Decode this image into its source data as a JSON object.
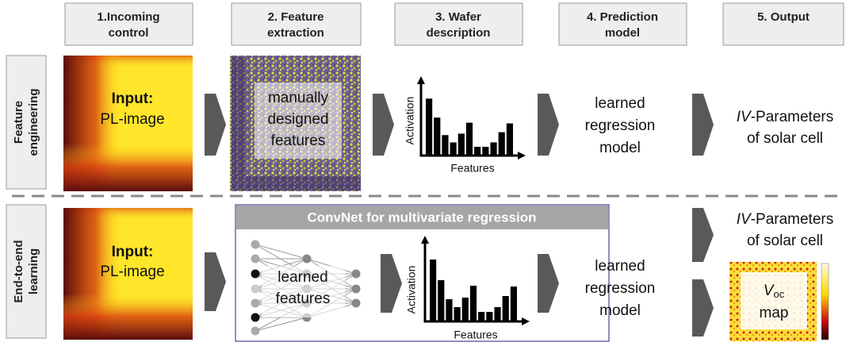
{
  "header": [
    {
      "lines": [
        "1.Incoming",
        "control"
      ]
    },
    {
      "lines": [
        "2. Feature",
        "extraction"
      ]
    },
    {
      "lines": [
        "3. Wafer",
        "description"
      ]
    },
    {
      "lines": [
        "4. Prediction",
        "model"
      ]
    },
    {
      "lines": [
        "5. Output"
      ]
    }
  ],
  "rows": [
    {
      "label": [
        "Feature",
        "engineering"
      ],
      "input": {
        "title": "Input:",
        "subtitle": "PL-image"
      },
      "features": [
        "manually",
        "designed",
        "features"
      ],
      "chart": {
        "y_label": "Activation",
        "x_label": "Features"
      },
      "model": [
        "learned",
        "regression",
        "model"
      ],
      "output": {
        "italic": "IV",
        "text": "-Parameters",
        "line2": "of solar cell"
      }
    },
    {
      "label": [
        "End-to-end",
        "learning"
      ],
      "input": {
        "title": "Input:",
        "subtitle": "PL-image"
      },
      "convnet_title": "ConvNet for multivariate regression",
      "features": [
        "learned",
        "features"
      ],
      "chart": {
        "y_label": "Activation",
        "x_label": "Features"
      },
      "model": [
        "learned",
        "regression",
        "model"
      ],
      "output": {
        "italic": "IV",
        "text": "-Parameters",
        "line2": "of solar cell"
      },
      "map": {
        "symbol": "V",
        "subscript": "oc",
        "line2": "map"
      }
    }
  ]
}
